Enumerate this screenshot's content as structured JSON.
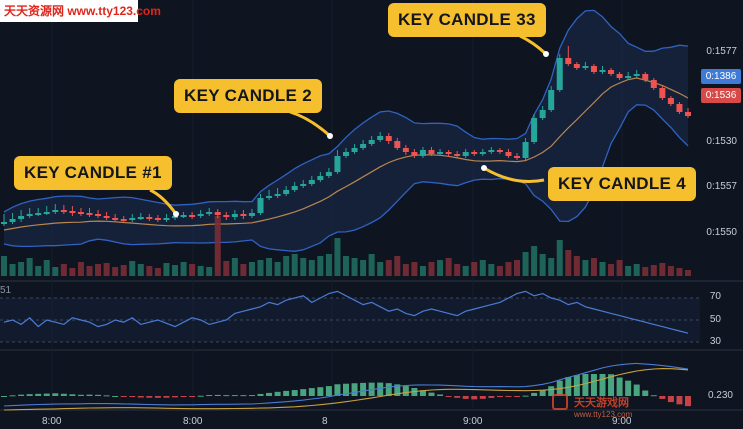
{
  "watermark": {
    "top_text": "天天资源网 www.tty123.com",
    "bottom_title": "天天游戏网",
    "bottom_url": "www.tty123.com"
  },
  "callouts": {
    "k1": "KEY CANDLE #1",
    "k2": "KEY CANDLE 2",
    "k33": "KEY CANDLE 33",
    "k4": "KEY CANDLE 4"
  },
  "chart_data": {
    "type": "candlestick",
    "price_axis_labels": [
      "0:1577",
      "0:1530",
      "0:1557",
      "0:1550"
    ],
    "current_prices": {
      "upper": "0:1386",
      "lower": "0:1536"
    },
    "rsi_axis_labels": [
      "70",
      "50",
      "30"
    ],
    "rsi_label": "51",
    "macd_axis_label": "0.230",
    "time_labels": [
      "8:00",
      "8:00",
      "8",
      "9:00",
      "9:00"
    ],
    "colors": {
      "up": "#26a69a",
      "down": "#ef5350",
      "bb": "#2f62c4",
      "ma": "#b9864f",
      "rsi": "#4a7bd6",
      "signal": "#c8a040",
      "accent": "#f5bf2e",
      "tag_upper": "#3f7bd6",
      "tag_lower": "#d84a48"
    },
    "candles": [
      [
        224,
        222,
        214,
        226
      ],
      [
        222,
        219,
        213,
        224
      ],
      [
        219,
        216,
        210,
        222
      ],
      [
        216,
        214,
        208,
        218
      ],
      [
        214,
        213,
        208,
        216
      ],
      [
        213,
        212,
        206,
        215
      ],
      [
        212,
        210,
        204,
        214
      ],
      [
        210,
        211,
        205,
        214
      ],
      [
        211,
        212,
        206,
        216
      ],
      [
        212,
        213,
        208,
        216
      ],
      [
        213,
        214,
        208,
        217
      ],
      [
        214,
        216,
        210,
        218
      ],
      [
        216,
        218,
        212,
        220
      ],
      [
        218,
        219,
        214,
        222
      ],
      [
        219,
        220,
        216,
        223
      ],
      [
        220,
        218,
        214,
        222
      ],
      [
        218,
        217,
        213,
        220
      ],
      [
        217,
        218,
        214,
        221
      ],
      [
        218,
        219,
        215,
        222
      ],
      [
        219,
        218,
        214,
        222
      ],
      [
        218,
        216,
        212,
        220
      ],
      [
        216,
        215,
        212,
        218
      ],
      [
        215,
        216,
        212,
        219
      ],
      [
        216,
        214,
        210,
        218
      ],
      [
        214,
        212,
        208,
        216
      ],
      [
        212,
        215,
        209,
        218
      ],
      [
        215,
        217,
        212,
        220
      ],
      [
        217,
        214,
        210,
        220
      ],
      [
        214,
        216,
        210,
        219
      ],
      [
        216,
        213,
        209,
        218
      ],
      [
        213,
        198,
        194,
        215
      ],
      [
        198,
        196,
        190,
        200
      ],
      [
        196,
        194,
        188,
        198
      ],
      [
        194,
        190,
        186,
        196
      ],
      [
        190,
        186,
        182,
        192
      ],
      [
        186,
        184,
        180,
        188
      ],
      [
        184,
        180,
        176,
        186
      ],
      [
        180,
        176,
        172,
        182
      ],
      [
        176,
        172,
        168,
        178
      ],
      [
        172,
        156,
        150,
        174
      ],
      [
        156,
        152,
        148,
        158
      ],
      [
        152,
        148,
        144,
        154
      ],
      [
        148,
        144,
        140,
        150
      ],
      [
        144,
        140,
        136,
        146
      ],
      [
        140,
        136,
        132,
        142
      ],
      [
        136,
        141,
        133,
        144
      ],
      [
        141,
        148,
        138,
        150
      ],
      [
        148,
        152,
        145,
        155
      ],
      [
        152,
        156,
        149,
        158
      ],
      [
        156,
        150,
        147,
        158
      ],
      [
        150,
        154,
        147,
        156
      ],
      [
        154,
        152,
        149,
        156
      ],
      [
        152,
        154,
        150,
        157
      ],
      [
        154,
        156,
        151,
        158
      ],
      [
        156,
        152,
        149,
        158
      ],
      [
        152,
        154,
        150,
        156
      ],
      [
        154,
        152,
        149,
        156
      ],
      [
        152,
        150,
        147,
        154
      ],
      [
        150,
        152,
        148,
        154
      ],
      [
        152,
        156,
        149,
        158
      ],
      [
        156,
        158,
        153,
        160
      ],
      [
        158,
        142,
        138,
        160
      ],
      [
        142,
        118,
        114,
        144
      ],
      [
        118,
        110,
        106,
        120
      ],
      [
        110,
        90,
        86,
        112
      ],
      [
        90,
        58,
        54,
        92
      ],
      [
        58,
        64,
        46,
        66
      ],
      [
        64,
        68,
        62,
        70
      ],
      [
        68,
        66,
        62,
        70
      ],
      [
        66,
        72,
        64,
        74
      ],
      [
        72,
        70,
        66,
        74
      ],
      [
        70,
        74,
        68,
        76
      ],
      [
        74,
        78,
        72,
        80
      ],
      [
        78,
        76,
        72,
        80
      ],
      [
        76,
        74,
        70,
        78
      ],
      [
        74,
        80,
        72,
        82
      ],
      [
        80,
        88,
        78,
        90
      ],
      [
        88,
        98,
        86,
        100
      ],
      [
        98,
        104,
        96,
        106
      ],
      [
        104,
        112,
        102,
        114
      ],
      [
        112,
        116,
        108,
        118
      ]
    ],
    "volumes": [
      20,
      12,
      14,
      18,
      10,
      16,
      9,
      12,
      8,
      14,
      10,
      12,
      13,
      9,
      11,
      15,
      12,
      10,
      8,
      13,
      11,
      14,
      12,
      10,
      9,
      60,
      15,
      18,
      12,
      14,
      16,
      18,
      14,
      20,
      22,
      18,
      16,
      20,
      22,
      38,
      20,
      18,
      16,
      22,
      14,
      16,
      20,
      12,
      14,
      10,
      14,
      16,
      18,
      12,
      10,
      14,
      16,
      12,
      10,
      14,
      16,
      24,
      30,
      22,
      18,
      36,
      26,
      20,
      16,
      18,
      14,
      12,
      16,
      10,
      12,
      9,
      11,
      13,
      10,
      8,
      6
    ],
    "rsi": [
      48,
      50,
      46,
      52,
      44,
      50,
      48,
      46,
      52,
      50,
      48,
      44,
      46,
      50,
      48,
      52,
      46,
      48,
      50,
      47,
      44,
      48,
      52,
      50,
      46,
      48,
      50,
      56,
      58,
      60,
      62,
      66,
      64,
      68,
      70,
      72,
      66,
      70,
      74,
      76,
      72,
      68,
      64,
      66,
      62,
      58,
      60,
      56,
      54,
      58,
      60,
      58,
      56,
      54,
      58,
      60,
      62,
      64,
      66,
      70,
      74,
      76,
      72,
      74,
      70,
      68,
      64,
      66,
      62,
      60,
      58,
      56,
      54,
      52,
      50,
      48,
      46,
      44,
      42,
      40,
      38
    ]
  }
}
